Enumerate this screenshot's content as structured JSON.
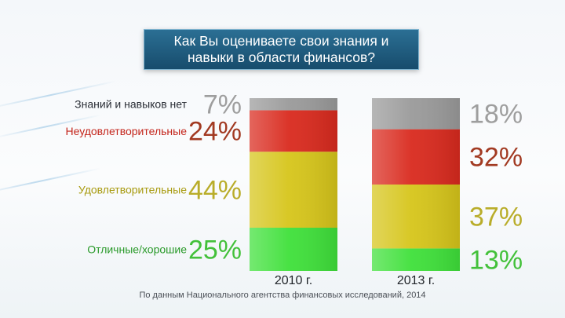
{
  "title": "Как Вы оцениваете свои знания и навыки в области финансов?",
  "source": "По данным Национального агентства финансовых исследований, 2014",
  "chart_data": {
    "type": "bar",
    "stacked": true,
    "categories": [
      "2010 г.",
      "2013 г."
    ],
    "series": [
      {
        "name": "Отличные/хорошие",
        "values": [
          25,
          13
        ],
        "color": "#3fe03a"
      },
      {
        "name": "Удовлетворительные",
        "values": [
          44,
          37
        ],
        "color": "#d6c51a"
      },
      {
        "name": "Неудовлетворительные",
        "values": [
          24,
          32
        ],
        "color": "#d92a1e"
      },
      {
        "name": "Знаний и навыков нет",
        "values": [
          7,
          18
        ],
        "color": "#9a9a9a"
      }
    ],
    "value_labels": [
      [
        "25%",
        "44%",
        "24%",
        "7%"
      ],
      [
        "13%",
        "37%",
        "32%",
        "18%"
      ]
    ],
    "label_colors": {
      "Отличные/хорошие": "#2a9a2a",
      "Удовлетворительные": "#a89b10",
      "Неудовлетворительные": "#c4261c",
      "Знаний и навыков нет": "#2a2e36"
    },
    "value_label_colors": {
      "Отличные/хорошие": "#43c13a",
      "Удовлетворительные": "#b9ad2a",
      "Неудовлетворительные": "#a23a22",
      "Знаний и навыков нет": "#9e9e9e"
    },
    "ylim": [
      0,
      100
    ]
  }
}
